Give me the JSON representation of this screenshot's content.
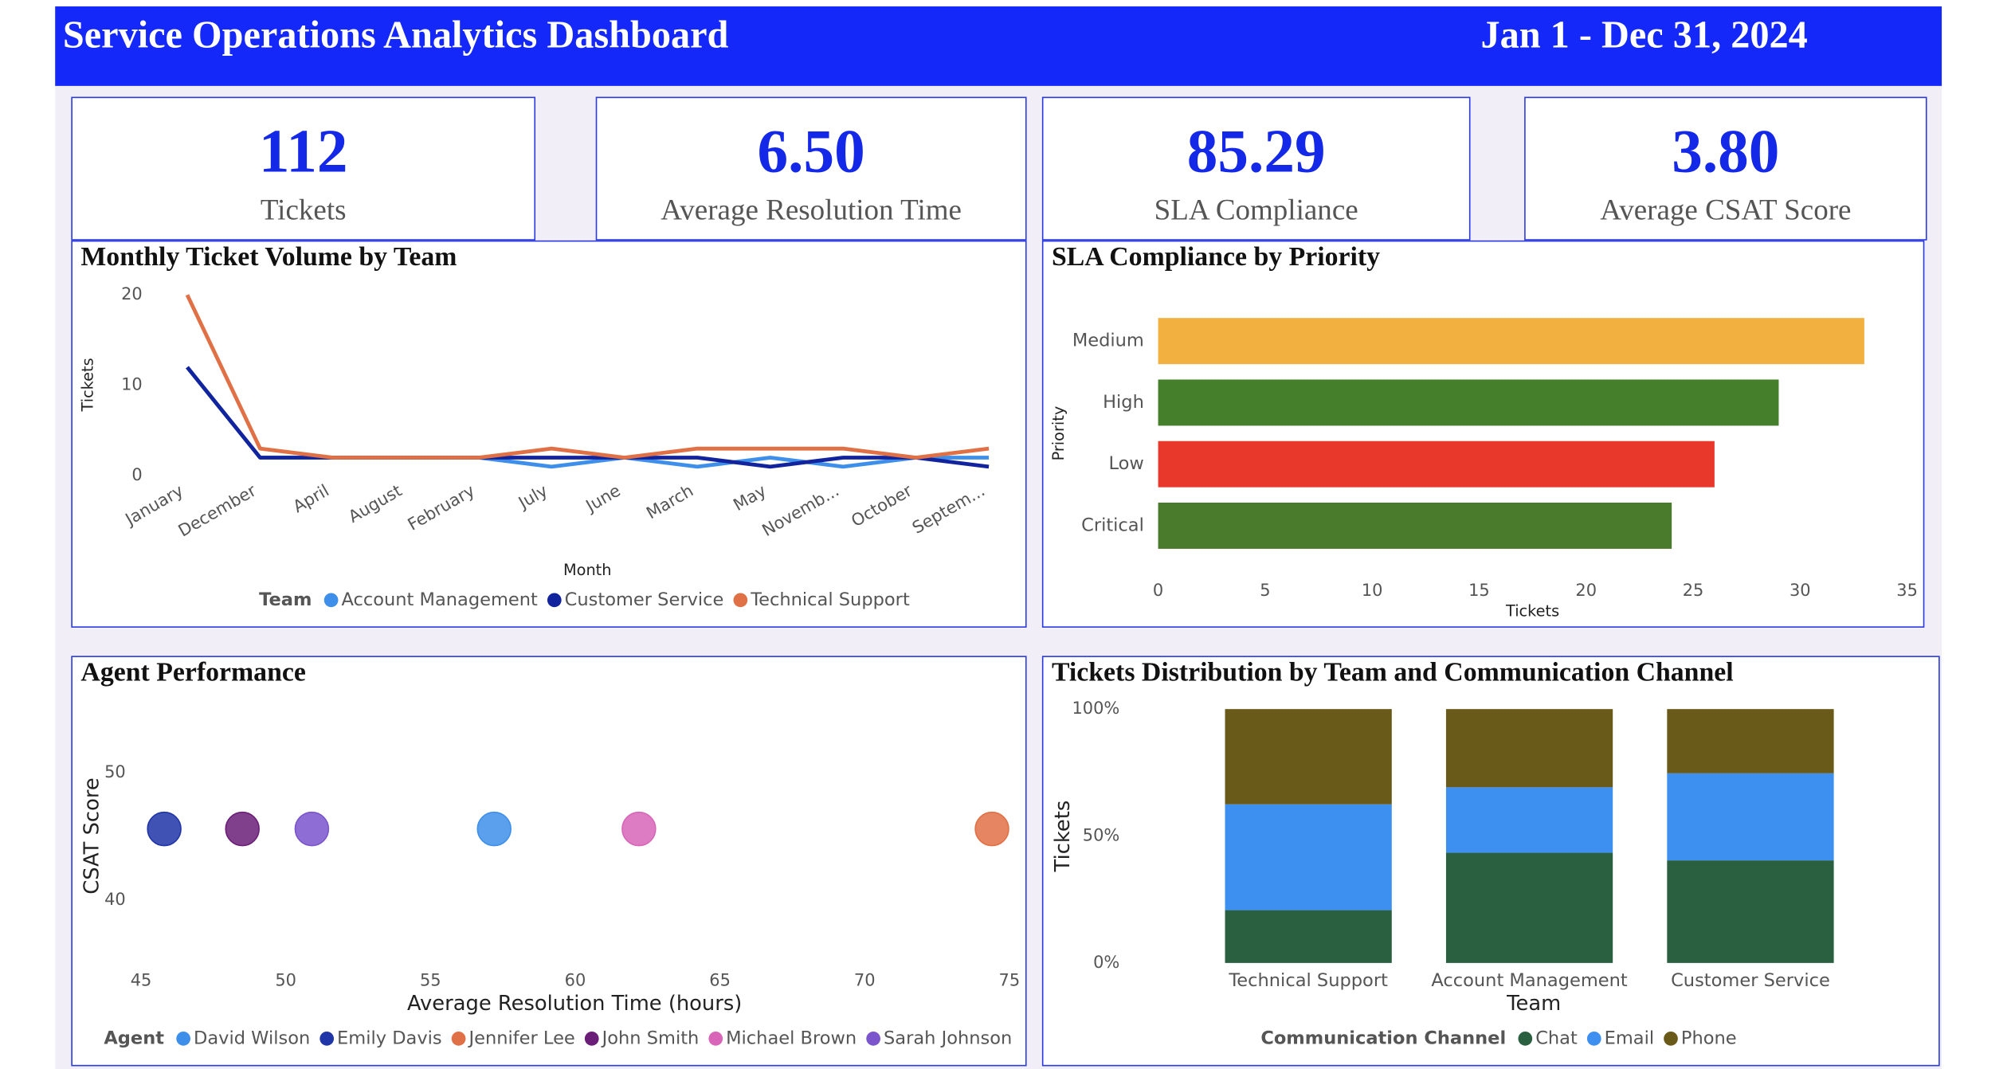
{
  "header": {
    "title": "Service Operations Analytics Dashboard",
    "date_range": "Jan 1 - Dec 31, 2024"
  },
  "kpis": [
    {
      "value": "112",
      "label": "Tickets"
    },
    {
      "value": "6.50",
      "label": "Average Resolution Time"
    },
    {
      "value": "85.29",
      "label": "SLA Compliance"
    },
    {
      "value": "3.80",
      "label": "Average CSAT Score"
    }
  ],
  "chart_data": [
    {
      "type": "line",
      "title": "Monthly Ticket Volume by Team",
      "x_label": "Month",
      "y_label": "Tickets",
      "legend_title": "Team",
      "categories": [
        "January",
        "December",
        "April",
        "August",
        "February",
        "July",
        "June",
        "March",
        "May",
        "Novemb...",
        "October",
        "Septem..."
      ],
      "ylim": [
        0,
        20
      ],
      "yticks": [
        0,
        10,
        20
      ],
      "series": [
        {
          "name": "Account Management",
          "color": "#3e8fea",
          "values": [
            12,
            2,
            2,
            2,
            2,
            1,
            2,
            1,
            2,
            1,
            2,
            2
          ]
        },
        {
          "name": "Customer Service",
          "color": "#12239e",
          "values": [
            12,
            2,
            2,
            2,
            2,
            2,
            2,
            2,
            1,
            2,
            2,
            1
          ]
        },
        {
          "name": "Technical Support",
          "color": "#e07045",
          "values": [
            20,
            3,
            2,
            2,
            2,
            3,
            2,
            3,
            3,
            3,
            2,
            3
          ]
        }
      ]
    },
    {
      "type": "barh",
      "title": "SLA Compliance by Priority",
      "x_label": "Tickets",
      "y_label": "Priority",
      "categories": [
        "Medium",
        "High",
        "Low",
        "Critical"
      ],
      "values": [
        33,
        29,
        26,
        24
      ],
      "colors": [
        "#f2b040",
        "#467f2c",
        "#e8372b",
        "#4a7a2c"
      ],
      "xlim": [
        0,
        35
      ],
      "xticks": [
        0,
        5,
        10,
        15,
        20,
        25,
        30,
        35
      ]
    },
    {
      "type": "scatter",
      "title": "Agent Performance",
      "x_label": "Average Resolution Time (hours)",
      "y_label": "CSAT Score",
      "legend_title": "Agent",
      "xlim": [
        45,
        75
      ],
      "xticks": [
        45,
        50,
        55,
        60,
        65,
        70,
        75
      ],
      "ylim": [
        38,
        54
      ],
      "yticks": [
        40,
        50
      ],
      "series": [
        {
          "name": "David Wilson",
          "color": "#3e8fea",
          "x": [
            57.2
          ],
          "values": [
            45.6
          ]
        },
        {
          "name": "Emily Davis",
          "color": "#1f35a8",
          "x": [
            45.8
          ],
          "values": [
            45.6
          ]
        },
        {
          "name": "Jennifer Lee",
          "color": "#e07045",
          "x": [
            74.4
          ],
          "values": [
            45.6
          ]
        },
        {
          "name": "John Smith",
          "color": "#6b1e78",
          "x": [
            48.5
          ],
          "values": [
            45.6
          ]
        },
        {
          "name": "Michael Brown",
          "color": "#d865b8",
          "x": [
            62.2
          ],
          "values": [
            45.6
          ]
        },
        {
          "name": "Sarah Johnson",
          "color": "#7a55cc",
          "x": [
            50.9
          ],
          "values": [
            45.6
          ]
        }
      ]
    },
    {
      "type": "stacked_column_100",
      "title": "Tickets Distribution by Team and Communication Channel",
      "x_label": "Team",
      "y_label": "Tickets",
      "legend_title": "Communication Channel",
      "categories": [
        "Technical Support",
        "Account Management",
        "Customer Service"
      ],
      "ylim": [
        0,
        100
      ],
      "yticks": [
        {
          "value": 0,
          "label": "0%"
        },
        {
          "value": 50,
          "label": "50%"
        },
        {
          "value": 100,
          "label": "100%"
        }
      ],
      "series": [
        {
          "name": "Chat",
          "color": "#2a6040",
          "values": [
            20.8,
            43.4,
            40.4
          ]
        },
        {
          "name": "Email",
          "color": "#3d8ff0",
          "values": [
            41.7,
            25.8,
            34.3
          ]
        },
        {
          "name": "Phone",
          "color": "#6a5a1a",
          "values": [
            37.5,
            30.8,
            25.3
          ]
        }
      ]
    }
  ]
}
